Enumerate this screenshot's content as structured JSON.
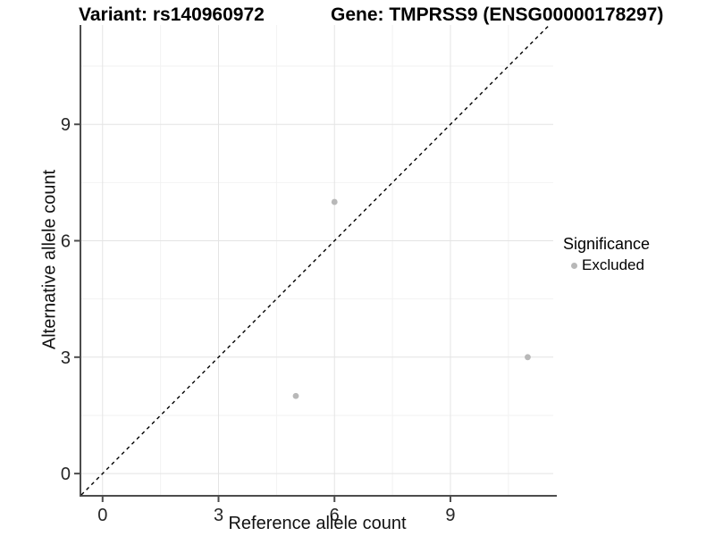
{
  "titles": {
    "variant": "Variant: rs140960972",
    "gene": "Gene: TMPRSS9 (ENSG00000178297)"
  },
  "chart_data": {
    "type": "scatter",
    "title": "Variant: rs140960972  |  Gene: TMPRSS9 (ENSG00000178297)",
    "xlabel": "Reference allele count",
    "ylabel": "Alternative allele count",
    "xlim": [
      -0.55,
      11.66
    ],
    "ylim": [
      -0.55,
      11.56
    ],
    "xticks": [
      0,
      3,
      6,
      9
    ],
    "yticks": [
      0,
      3,
      6,
      9
    ],
    "minor_xticks": [
      1.5,
      4.5,
      7.5,
      10.5
    ],
    "minor_yticks": [
      1.5,
      4.5,
      7.5,
      10.5
    ],
    "grid": true,
    "series": [
      {
        "name": "Excluded",
        "color": "#b8b8b8",
        "points": [
          {
            "x": 5,
            "y": 2
          },
          {
            "x": 6,
            "y": 7
          },
          {
            "x": 11,
            "y": 3
          }
        ]
      }
    ],
    "reference_line": {
      "type": "abline",
      "slope": 1,
      "intercept": 0,
      "style": "dashed",
      "color": "#000000"
    },
    "legend": {
      "title": "Significance",
      "position": "right",
      "entries": [
        {
          "label": "Excluded",
          "color": "#b8b8b8"
        }
      ]
    }
  },
  "colors": {
    "background": "#ffffff",
    "axis_line": "#4d4d4d",
    "tick_label": "#262626",
    "grid_major": "#e4e4e4",
    "grid_minor": "#f2f2f2",
    "point_excluded": "#b8b8b8"
  }
}
